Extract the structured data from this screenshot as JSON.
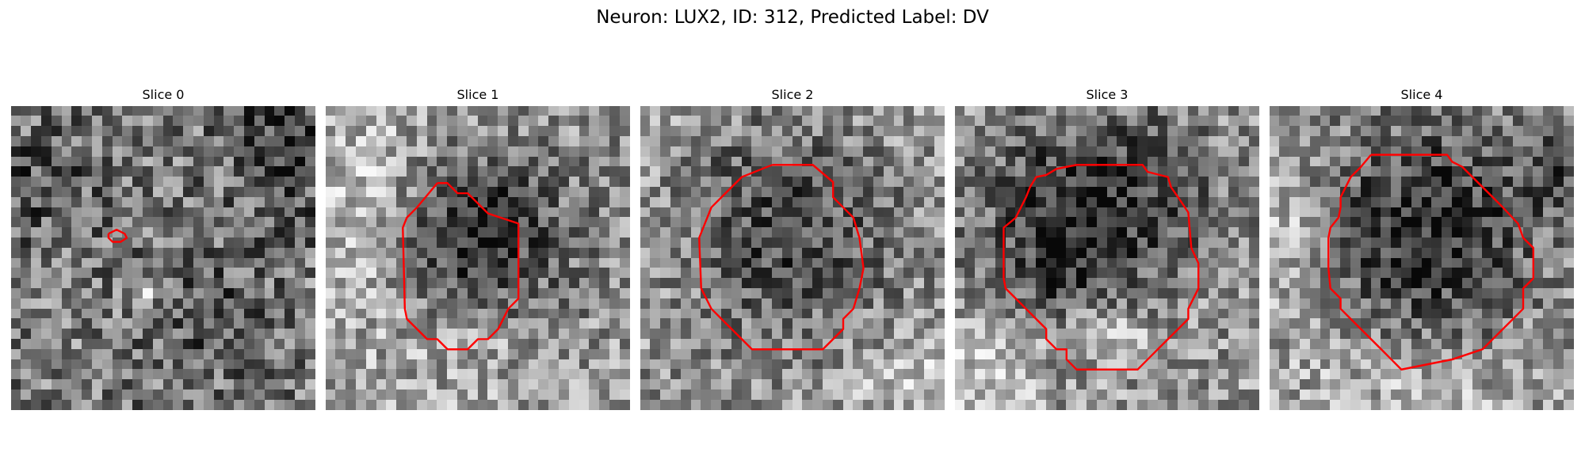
{
  "figure": {
    "title": "Neuron: LUX2, ID: 312, Predicted Label: DV"
  },
  "panels": [
    {
      "title": "Slice 0"
    },
    {
      "title": "Slice 1"
    },
    {
      "title": "Slice 2"
    },
    {
      "title": "Slice 3"
    },
    {
      "title": "Slice 4"
    }
  ],
  "colors": {
    "contour": "#ff0000",
    "background": "#ffffff"
  }
}
